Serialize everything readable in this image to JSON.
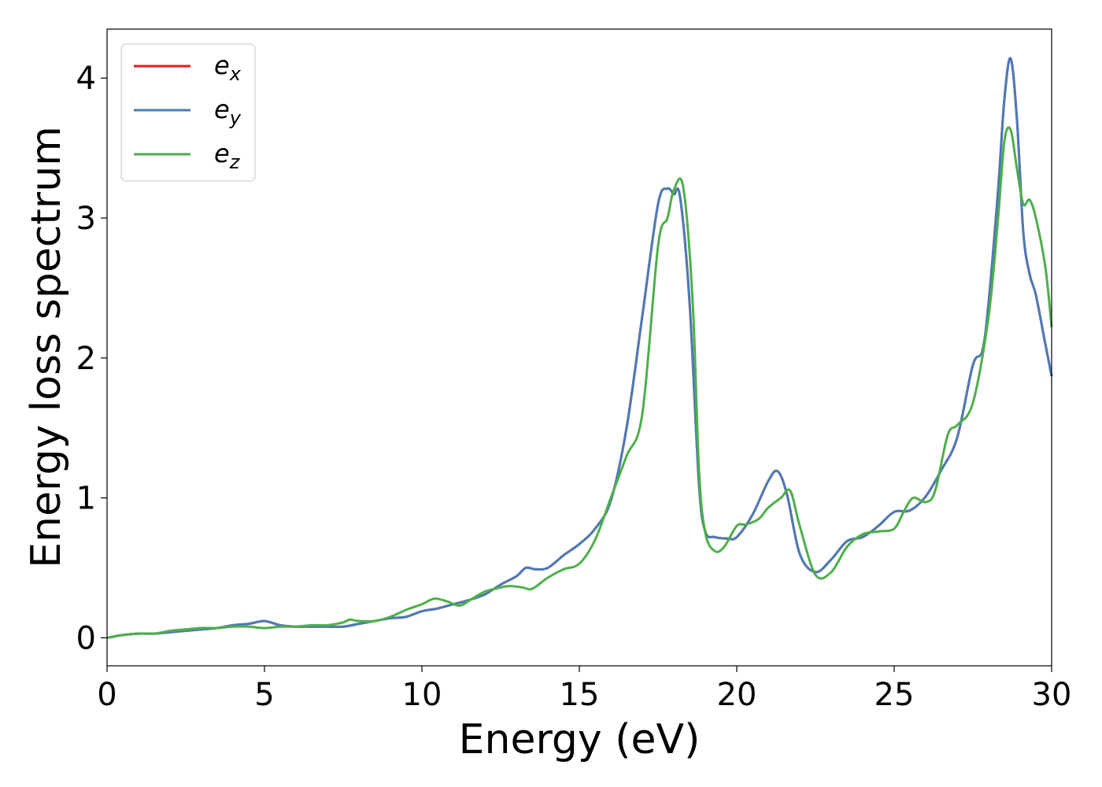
{
  "chart_data": {
    "type": "line",
    "xlabel": "Energy (eV)",
    "ylabel": "Energy loss spectrum",
    "xlim": [
      0,
      30
    ],
    "ylim": [
      -0.2,
      4.35
    ],
    "xticks": [
      "0",
      "5",
      "10",
      "15",
      "20",
      "25",
      "30"
    ],
    "xtick_values": [
      0,
      5,
      10,
      15,
      20,
      25,
      30
    ],
    "yticks": [
      "0",
      "1",
      "2",
      "3",
      "4"
    ],
    "ytick_values": [
      0,
      1,
      2,
      3,
      4
    ],
    "grid": false,
    "legend_placement": "top-left",
    "series": [
      {
        "name": "ex",
        "legend_base": "e",
        "legend_sub": "x",
        "color": "#e41a1c",
        "x": [
          0,
          0.5,
          1.0,
          1.5,
          2.0,
          2.5,
          3.0,
          3.5,
          4.0,
          4.5,
          5.0,
          5.5,
          6.0,
          6.5,
          7.0,
          7.5,
          8.0,
          8.5,
          9.0,
          9.5,
          10.0,
          10.5,
          11.0,
          11.5,
          12.0,
          12.5,
          13.0,
          13.3,
          13.6,
          14.0,
          14.5,
          15.0,
          15.5,
          16.0,
          16.5,
          17.0,
          17.5,
          17.8,
          18.0,
          18.2,
          18.5,
          18.8,
          19.0,
          19.3,
          19.7,
          20.0,
          20.5,
          21.0,
          21.3,
          21.6,
          22.0,
          22.5,
          23.0,
          23.5,
          24.0,
          24.5,
          25.0,
          25.5,
          26.0,
          26.5,
          27.0,
          27.5,
          27.8,
          28.0,
          28.3,
          28.5,
          28.7,
          28.9,
          29.1,
          29.3,
          29.5,
          29.8,
          30.0
        ],
        "y": [
          0.0,
          0.02,
          0.03,
          0.03,
          0.04,
          0.05,
          0.06,
          0.07,
          0.09,
          0.1,
          0.12,
          0.09,
          0.08,
          0.08,
          0.08,
          0.08,
          0.1,
          0.12,
          0.14,
          0.15,
          0.19,
          0.21,
          0.24,
          0.27,
          0.31,
          0.38,
          0.44,
          0.5,
          0.49,
          0.5,
          0.59,
          0.67,
          0.78,
          0.98,
          1.5,
          2.3,
          3.1,
          3.21,
          3.17,
          3.15,
          2.4,
          1.1,
          0.76,
          0.72,
          0.71,
          0.72,
          0.88,
          1.12,
          1.19,
          1.02,
          0.6,
          0.47,
          0.56,
          0.69,
          0.72,
          0.8,
          0.9,
          0.91,
          1.01,
          1.2,
          1.43,
          1.95,
          2.05,
          2.4,
          3.2,
          3.85,
          4.14,
          3.7,
          2.9,
          2.6,
          2.45,
          2.1,
          1.87
        ]
      },
      {
        "name": "ey",
        "legend_base": "e",
        "legend_sub": "y",
        "color": "#4a7bb7",
        "x": [
          0,
          0.5,
          1.0,
          1.5,
          2.0,
          2.5,
          3.0,
          3.5,
          4.0,
          4.5,
          5.0,
          5.5,
          6.0,
          6.5,
          7.0,
          7.5,
          8.0,
          8.5,
          9.0,
          9.5,
          10.0,
          10.5,
          11.0,
          11.5,
          12.0,
          12.5,
          13.0,
          13.3,
          13.6,
          14.0,
          14.5,
          15.0,
          15.5,
          16.0,
          16.5,
          17.0,
          17.5,
          17.8,
          18.0,
          18.2,
          18.5,
          18.8,
          19.0,
          19.3,
          19.7,
          20.0,
          20.5,
          21.0,
          21.3,
          21.6,
          22.0,
          22.5,
          23.0,
          23.5,
          24.0,
          24.5,
          25.0,
          25.5,
          26.0,
          26.5,
          27.0,
          27.5,
          27.8,
          28.0,
          28.3,
          28.5,
          28.7,
          28.9,
          29.1,
          29.3,
          29.5,
          29.8,
          30.0
        ],
        "y": [
          0.0,
          0.02,
          0.03,
          0.03,
          0.04,
          0.05,
          0.06,
          0.07,
          0.09,
          0.1,
          0.12,
          0.09,
          0.08,
          0.08,
          0.08,
          0.08,
          0.1,
          0.12,
          0.14,
          0.15,
          0.19,
          0.21,
          0.24,
          0.27,
          0.31,
          0.38,
          0.44,
          0.5,
          0.49,
          0.5,
          0.59,
          0.67,
          0.78,
          0.98,
          1.5,
          2.3,
          3.1,
          3.21,
          3.17,
          3.15,
          2.4,
          1.1,
          0.76,
          0.72,
          0.71,
          0.72,
          0.88,
          1.12,
          1.19,
          1.02,
          0.6,
          0.47,
          0.56,
          0.69,
          0.72,
          0.8,
          0.9,
          0.91,
          1.01,
          1.2,
          1.43,
          1.95,
          2.05,
          2.4,
          3.2,
          3.85,
          4.14,
          3.7,
          2.9,
          2.6,
          2.45,
          2.1,
          1.87
        ]
      },
      {
        "name": "ez",
        "legend_base": "e",
        "legend_sub": "z",
        "color": "#4daf4a",
        "x": [
          0,
          0.5,
          1.0,
          1.5,
          2.0,
          2.5,
          3.0,
          3.5,
          4.0,
          4.5,
          5.0,
          5.5,
          6.0,
          6.5,
          7.0,
          7.5,
          7.7,
          8.0,
          8.5,
          9.0,
          9.5,
          10.0,
          10.4,
          10.8,
          11.2,
          11.6,
          12.0,
          12.5,
          12.8,
          13.2,
          13.5,
          14.0,
          14.5,
          15.0,
          15.5,
          16.0,
          16.5,
          17.0,
          17.5,
          17.8,
          18.0,
          18.3,
          18.6,
          18.8,
          19.0,
          19.3,
          19.6,
          20.0,
          20.3,
          20.7,
          21.0,
          21.4,
          21.7,
          22.0,
          22.5,
          23.0,
          23.5,
          24.0,
          24.5,
          25.0,
          25.3,
          25.6,
          26.0,
          26.3,
          26.7,
          27.0,
          27.5,
          28.0,
          28.3,
          28.5,
          28.7,
          28.9,
          29.1,
          29.3,
          29.5,
          29.8,
          30.0
        ],
        "y": [
          0.0,
          0.02,
          0.03,
          0.03,
          0.05,
          0.06,
          0.07,
          0.07,
          0.08,
          0.08,
          0.07,
          0.08,
          0.08,
          0.09,
          0.09,
          0.11,
          0.13,
          0.12,
          0.12,
          0.15,
          0.2,
          0.24,
          0.28,
          0.26,
          0.23,
          0.28,
          0.33,
          0.36,
          0.37,
          0.36,
          0.35,
          0.43,
          0.49,
          0.53,
          0.7,
          1.0,
          1.3,
          1.6,
          2.8,
          3.0,
          3.2,
          3.22,
          2.4,
          1.2,
          0.75,
          0.62,
          0.65,
          0.8,
          0.81,
          0.85,
          0.93,
          1.0,
          1.05,
          0.8,
          0.45,
          0.47,
          0.65,
          0.74,
          0.76,
          0.78,
          0.9,
          1.0,
          0.97,
          1.05,
          1.45,
          1.52,
          1.68,
          2.3,
          3.0,
          3.55,
          3.63,
          3.35,
          3.1,
          3.13,
          3.0,
          2.65,
          2.22
        ]
      }
    ]
  }
}
